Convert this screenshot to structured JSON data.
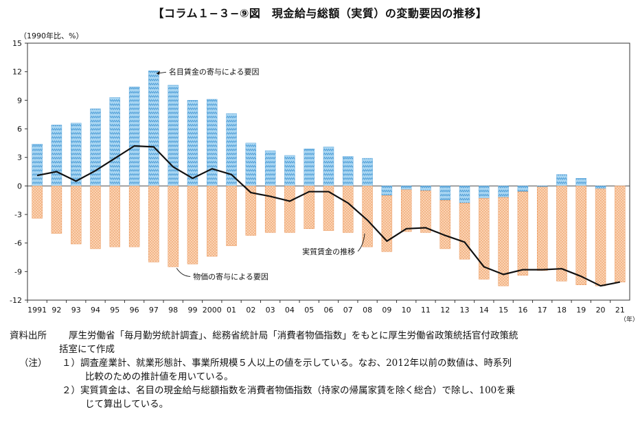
{
  "title": "【コラム１−３−⑨図　現金給与総額（実質）の変動要因の推移】",
  "chart_data": {
    "type": "bar",
    "unit_label": "（1990年比、%）",
    "x_unit": "（年）",
    "categories": [
      "1991",
      "92",
      "93",
      "94",
      "95",
      "96",
      "97",
      "98",
      "99",
      "2000",
      "01",
      "02",
      "03",
      "04",
      "05",
      "06",
      "07",
      "08",
      "09",
      "10",
      "11",
      "12",
      "13",
      "14",
      "15",
      "16",
      "17",
      "18",
      "19",
      "20",
      "21"
    ],
    "ylim": [
      -12,
      15
    ],
    "yticks": [
      -12,
      -9,
      -6,
      -3,
      0,
      3,
      6,
      9,
      12,
      15
    ],
    "series": [
      {
        "name": "名目賃金の寄与による要因",
        "type": "bar",
        "color": "#8fc7ea",
        "values": [
          4.4,
          6.4,
          6.6,
          8.1,
          9.3,
          10.4,
          12.1,
          10.6,
          9.0,
          9.1,
          7.6,
          4.5,
          3.7,
          3.2,
          3.9,
          4.1,
          3.1,
          2.9,
          -1.0,
          -0.4,
          -0.5,
          -1.5,
          -1.8,
          -1.3,
          -1.2,
          -0.6,
          -0.1,
          1.2,
          0.8,
          -0.3,
          0.0
        ]
      },
      {
        "name": "物価の寄与による要因",
        "type": "bar",
        "color": "#f6b98a",
        "values": [
          -3.4,
          -5.0,
          -6.1,
          -6.6,
          -6.4,
          -6.4,
          -8.0,
          -8.5,
          -8.2,
          -7.4,
          -6.3,
          -5.2,
          -4.9,
          -4.9,
          -4.5,
          -4.7,
          -4.9,
          -6.4,
          -5.9,
          -4.4,
          -4.4,
          -5.1,
          -5.9,
          -8.5,
          -9.3,
          -8.8,
          -8.8,
          -10.0,
          -10.4,
          -10.2,
          -10.1
        ]
      },
      {
        "name": "実質賃金の推移",
        "type": "line",
        "color": "#111111",
        "values": [
          1.1,
          1.5,
          0.5,
          1.6,
          2.9,
          4.2,
          4.1,
          2.0,
          0.8,
          1.8,
          1.2,
          -0.7,
          -1.1,
          -1.6,
          -0.6,
          -0.6,
          -1.8,
          -3.6,
          -5.8,
          -4.5,
          -4.4,
          -5.2,
          -5.9,
          -8.5,
          -9.3,
          -8.8,
          -8.8,
          -8.7,
          -9.5,
          -10.5,
          -10.1
        ]
      }
    ],
    "annotations": [
      {
        "text": "名目賃金の寄与による要因",
        "target_index": 6,
        "target_value": 12.1
      },
      {
        "text": "物価の寄与による要因",
        "target_index": 7,
        "target_value": -8.5
      },
      {
        "text": "実質賃金の推移",
        "target_index": 17,
        "target_value": -5.0
      }
    ]
  },
  "notes": {
    "source_label": "資料出所",
    "source_text_1": "厚生労働省「毎月勤労統計調査」、総務省統計局「消費者物価指数」をもとに厚生労働省政策統括官付政策統",
    "source_text_2": "括室にて作成",
    "note_label": "（注）",
    "note1_a": "１）調査産業計、就業形態計、事業所規模５人以上の値を示している。なお、2012年以前の数値は、時系列",
    "note1_b": "比較のための推計値を用いている。",
    "note2_a": "２）実質賃金は、名目の現金給与総額指数を消費者物価指数（持家の帰属家賃を除く総合）で除し、100を乗",
    "note2_b": "じて算出している。"
  }
}
